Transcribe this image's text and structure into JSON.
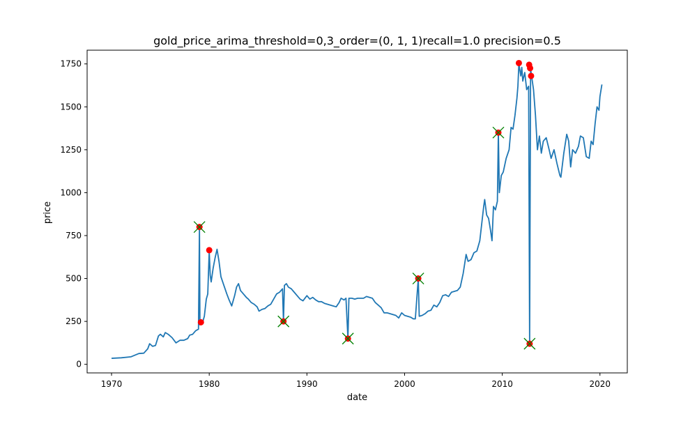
{
  "chart_data": {
    "type": "line",
    "title": "gold_price_arima_threshold=0,3_order=(0, 1, 1)recall=1.0 precision=0.5",
    "xlabel": "date",
    "ylabel": "price",
    "xlim": [
      1967.5,
      2022.8
    ],
    "ylim": [
      -50,
      1830
    ],
    "xticks": [
      1970,
      1980,
      1990,
      2000,
      2010,
      2020
    ],
    "xtick_labels": [
      "1970",
      "1980",
      "1990",
      "2000",
      "2010",
      "2020"
    ],
    "yticks": [
      0,
      250,
      500,
      750,
      1000,
      1250,
      1500,
      1750
    ],
    "ytick_labels": [
      "0",
      "250",
      "500",
      "750",
      "1000",
      "1250",
      "1500",
      "1750"
    ],
    "grid": false,
    "colors": {
      "line": "#1f77b4",
      "detected": "#ff0000",
      "true_anomaly": "#008000"
    },
    "series": [
      {
        "values": [
          [
            1970.0,
            35
          ],
          [
            1971.0,
            38
          ],
          [
            1972.0,
            44
          ],
          [
            1972.8,
            63
          ],
          [
            1973.3,
            65
          ],
          [
            1973.7,
            90
          ],
          [
            1973.9,
            120
          ],
          [
            1974.2,
            105
          ],
          [
            1974.5,
            110
          ],
          [
            1974.8,
            165
          ],
          [
            1975.0,
            175
          ],
          [
            1975.3,
            160
          ],
          [
            1975.5,
            185
          ],
          [
            1975.8,
            175
          ],
          [
            1976.2,
            155
          ],
          [
            1976.6,
            125
          ],
          [
            1977.0,
            140
          ],
          [
            1977.4,
            140
          ],
          [
            1977.8,
            150
          ],
          [
            1978.0,
            170
          ],
          [
            1978.3,
            175
          ],
          [
            1978.6,
            195
          ],
          [
            1978.9,
            205
          ],
          [
            1979.0,
            800
          ],
          [
            1979.05,
            230
          ],
          [
            1979.15,
            245
          ],
          [
            1979.3,
            240
          ],
          [
            1979.5,
            280
          ],
          [
            1979.7,
            380
          ],
          [
            1979.85,
            410
          ],
          [
            1980.0,
            660
          ],
          [
            1980.1,
            520
          ],
          [
            1980.2,
            480
          ],
          [
            1980.4,
            560
          ],
          [
            1980.6,
            620
          ],
          [
            1980.8,
            670
          ],
          [
            1981.0,
            600
          ],
          [
            1981.2,
            510
          ],
          [
            1981.5,
            460
          ],
          [
            1981.8,
            410
          ],
          [
            1982.0,
            380
          ],
          [
            1982.3,
            340
          ],
          [
            1982.6,
            400
          ],
          [
            1982.8,
            450
          ],
          [
            1983.0,
            470
          ],
          [
            1983.2,
            430
          ],
          [
            1983.5,
            410
          ],
          [
            1983.8,
            390
          ],
          [
            1984.0,
            380
          ],
          [
            1984.3,
            360
          ],
          [
            1984.6,
            350
          ],
          [
            1984.9,
            335
          ],
          [
            1985.1,
            310
          ],
          [
            1985.4,
            320
          ],
          [
            1985.7,
            325
          ],
          [
            1986.0,
            340
          ],
          [
            1986.3,
            350
          ],
          [
            1986.6,
            380
          ],
          [
            1986.9,
            410
          ],
          [
            1987.2,
            420
          ],
          [
            1987.5,
            440
          ],
          [
            1987.6,
            250
          ],
          [
            1987.7,
            460
          ],
          [
            1987.9,
            470
          ],
          [
            1988.1,
            450
          ],
          [
            1988.4,
            440
          ],
          [
            1988.7,
            420
          ],
          [
            1989.0,
            400
          ],
          [
            1989.3,
            380
          ],
          [
            1989.6,
            370
          ],
          [
            1990.0,
            400
          ],
          [
            1990.3,
            380
          ],
          [
            1990.6,
            390
          ],
          [
            1990.9,
            375
          ],
          [
            1991.2,
            365
          ],
          [
            1991.5,
            365
          ],
          [
            1991.8,
            355
          ],
          [
            1992.1,
            350
          ],
          [
            1992.4,
            345
          ],
          [
            1992.7,
            340
          ],
          [
            1993.0,
            335
          ],
          [
            1993.3,
            360
          ],
          [
            1993.5,
            385
          ],
          [
            1993.8,
            375
          ],
          [
            1994.0,
            385
          ],
          [
            1994.2,
            150
          ],
          [
            1994.3,
            385
          ],
          [
            1994.6,
            385
          ],
          [
            1994.9,
            380
          ],
          [
            1995.2,
            385
          ],
          [
            1995.5,
            385
          ],
          [
            1995.8,
            385
          ],
          [
            1996.1,
            395
          ],
          [
            1996.4,
            390
          ],
          [
            1996.7,
            385
          ],
          [
            1997.0,
            360
          ],
          [
            1997.3,
            345
          ],
          [
            1997.6,
            330
          ],
          [
            1997.9,
            300
          ],
          [
            1998.2,
            300
          ],
          [
            1998.5,
            295
          ],
          [
            1998.8,
            290
          ],
          [
            1999.1,
            285
          ],
          [
            1999.4,
            270
          ],
          [
            1999.7,
            300
          ],
          [
            2000.0,
            285
          ],
          [
            2000.3,
            280
          ],
          [
            2000.6,
            275
          ],
          [
            2000.9,
            265
          ],
          [
            2001.1,
            265
          ],
          [
            2001.4,
            500
          ],
          [
            2001.5,
            280
          ],
          [
            2001.8,
            285
          ],
          [
            2002.1,
            295
          ],
          [
            2002.4,
            310
          ],
          [
            2002.7,
            315
          ],
          [
            2003.0,
            345
          ],
          [
            2003.3,
            335
          ],
          [
            2003.6,
            360
          ],
          [
            2003.9,
            400
          ],
          [
            2004.2,
            405
          ],
          [
            2004.5,
            395
          ],
          [
            2004.8,
            420
          ],
          [
            2005.1,
            425
          ],
          [
            2005.4,
            430
          ],
          [
            2005.7,
            450
          ],
          [
            2006.0,
            530
          ],
          [
            2006.3,
            640
          ],
          [
            2006.5,
            600
          ],
          [
            2006.8,
            610
          ],
          [
            2007.1,
            650
          ],
          [
            2007.4,
            660
          ],
          [
            2007.7,
            720
          ],
          [
            2007.9,
            820
          ],
          [
            2008.1,
            920
          ],
          [
            2008.2,
            960
          ],
          [
            2008.4,
            870
          ],
          [
            2008.6,
            850
          ],
          [
            2008.8,
            780
          ],
          [
            2008.95,
            720
          ],
          [
            2009.1,
            920
          ],
          [
            2009.3,
            900
          ],
          [
            2009.5,
            950
          ],
          [
            2009.6,
            1350
          ],
          [
            2009.7,
            1000
          ],
          [
            2009.9,
            1100
          ],
          [
            2010.1,
            1120
          ],
          [
            2010.4,
            1200
          ],
          [
            2010.7,
            1250
          ],
          [
            2010.9,
            1380
          ],
          [
            2011.1,
            1370
          ],
          [
            2011.3,
            1450
          ],
          [
            2011.5,
            1550
          ],
          [
            2011.6,
            1620
          ],
          [
            2011.7,
            1750
          ],
          [
            2011.9,
            1680
          ],
          [
            2012.0,
            1730
          ],
          [
            2012.1,
            1650
          ],
          [
            2012.3,
            1700
          ],
          [
            2012.5,
            1600
          ],
          [
            2012.7,
            1620
          ],
          [
            2012.8,
            120
          ],
          [
            2012.9,
            1720
          ],
          [
            2013.0,
            1680
          ],
          [
            2013.2,
            1600
          ],
          [
            2013.4,
            1450
          ],
          [
            2013.6,
            1250
          ],
          [
            2013.8,
            1330
          ],
          [
            2014.0,
            1230
          ],
          [
            2014.2,
            1300
          ],
          [
            2014.5,
            1320
          ],
          [
            2014.8,
            1250
          ],
          [
            2015.0,
            1200
          ],
          [
            2015.3,
            1250
          ],
          [
            2015.6,
            1170
          ],
          [
            2015.9,
            1100
          ],
          [
            2016.0,
            1090
          ],
          [
            2016.3,
            1230
          ],
          [
            2016.6,
            1340
          ],
          [
            2016.8,
            1300
          ],
          [
            2017.0,
            1150
          ],
          [
            2017.2,
            1250
          ],
          [
            2017.5,
            1230
          ],
          [
            2017.8,
            1270
          ],
          [
            2018.0,
            1330
          ],
          [
            2018.3,
            1320
          ],
          [
            2018.6,
            1210
          ],
          [
            2018.9,
            1200
          ],
          [
            2019.1,
            1300
          ],
          [
            2019.3,
            1280
          ],
          [
            2019.5,
            1400
          ],
          [
            2019.7,
            1500
          ],
          [
            2019.9,
            1480
          ],
          [
            2020.0,
            1560
          ],
          [
            2020.2,
            1630
          ]
        ]
      }
    ],
    "detected_points": [
      [
        1979.0,
        800
      ],
      [
        1979.15,
        245
      ],
      [
        1980.0,
        665
      ],
      [
        1987.6,
        250
      ],
      [
        1994.2,
        150
      ],
      [
        2001.4,
        500
      ],
      [
        2009.6,
        1350
      ],
      [
        2011.7,
        1755
      ],
      [
        2012.75,
        1745
      ],
      [
        2012.85,
        1725
      ],
      [
        2012.95,
        1680
      ],
      [
        2012.8,
        120
      ]
    ],
    "true_anomaly_points": [
      [
        1979.0,
        800
      ],
      [
        1987.6,
        250
      ],
      [
        1994.2,
        150
      ],
      [
        2001.4,
        500
      ],
      [
        2009.6,
        1350
      ],
      [
        2012.8,
        120
      ]
    ]
  }
}
